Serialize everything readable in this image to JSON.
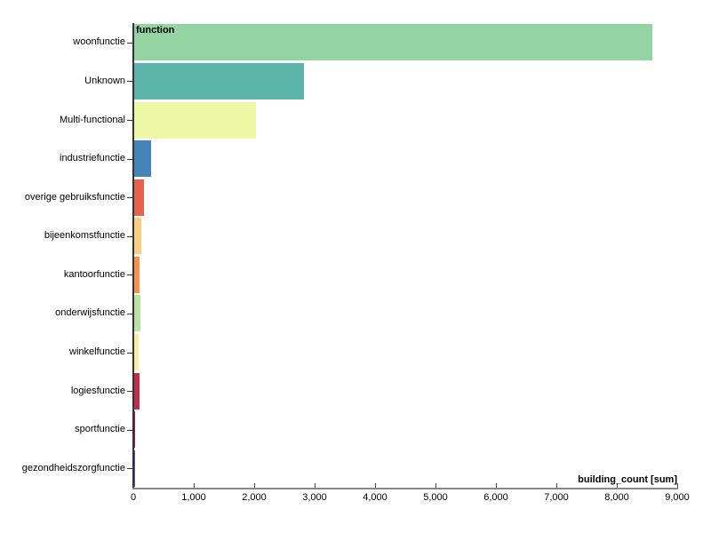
{
  "chart_data": {
    "type": "bar",
    "orientation": "horizontal",
    "title": "function",
    "xlabel": "building_count [sum]",
    "ylabel": "function",
    "xlim": [
      0,
      9000
    ],
    "grid": false,
    "legend": "none",
    "x_tick_values": [
      0,
      1000,
      2000,
      3000,
      4000,
      5000,
      6000,
      7000,
      8000,
      9000
    ],
    "x_tick_labels": [
      "0",
      "1,000",
      "2,000",
      "3,000",
      "4,000",
      "5,000",
      "6,000",
      "7,000",
      "8,000",
      "9,000"
    ],
    "categories": [
      "woonfunctie",
      "Unknown",
      "Multi-functional",
      "industriefunctie",
      "overige gebruiksfunctie",
      "bijeenkomstfunctie",
      "kantoorfunctie",
      "onderwijsfunctie",
      "winkelfunctie",
      "logiesfunctie",
      "sportfunctie",
      "gezondheidszorgfunctie"
    ],
    "values": [
      8580,
      2815,
      2015,
      275,
      160,
      120,
      90,
      95,
      80,
      85,
      18,
      4
    ],
    "colors": [
      "#94d3a2",
      "#5cb4ab",
      "#eef7a4",
      "#4584b6",
      "#e7624b",
      "#fccd7e",
      "#f7914b",
      "#bbe1a3",
      "#f9eda6",
      "#c02e4c",
      "#a0194a",
      "#5e4fa2"
    ],
    "axis_colors": {
      "y_axis": "#333333",
      "x_axis": "#888888"
    }
  }
}
